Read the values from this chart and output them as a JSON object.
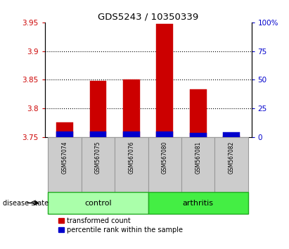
{
  "title": "GDS5243 / 10350339",
  "samples": [
    "GSM567074",
    "GSM567075",
    "GSM567076",
    "GSM567080",
    "GSM567081",
    "GSM567082"
  ],
  "red_values": [
    3.775,
    3.848,
    3.85,
    3.947,
    3.833,
    3.752
  ],
  "blue_values": [
    3.76,
    3.76,
    3.76,
    3.76,
    3.757,
    3.758
  ],
  "ylim": [
    3.75,
    3.95
  ],
  "yticks": [
    3.75,
    3.8,
    3.85,
    3.9,
    3.95
  ],
  "ytick_labels": [
    "3.75",
    "3.8",
    "3.85",
    "3.9",
    "3.95"
  ],
  "right_yticks_pct": [
    0,
    25,
    50,
    75,
    100
  ],
  "right_ytick_labels": [
    "0",
    "25",
    "50",
    "75",
    "100%"
  ],
  "baseline": 3.75,
  "bar_width": 0.5,
  "red_color": "#cc0000",
  "blue_color": "#0000cc",
  "control_color": "#aaffaa",
  "arthritis_color": "#44ee44",
  "sample_bg_color": "#cccccc",
  "left_tick_color": "#cc0000",
  "right_tick_color": "#0000cc",
  "grid_color": "#000000",
  "grid_ticks": [
    3.8,
    3.85,
    3.9
  ],
  "legend_items": [
    "transformed count",
    "percentile rank within the sample"
  ],
  "disease_state_label": "disease state",
  "group_label_control": "control",
  "group_label_arthritis": "arthritis",
  "control_indices": [
    0,
    1,
    2
  ],
  "arthritis_indices": [
    3,
    4,
    5
  ]
}
